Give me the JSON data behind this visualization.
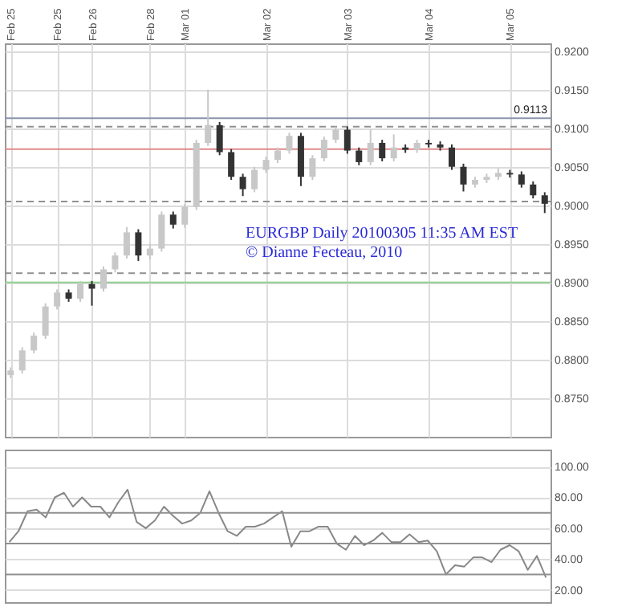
{
  "chart_data": [
    {
      "type": "candlestick",
      "grid": true,
      "annotations": [
        "EURGBP Daily 20100305 11:35 AM EST",
        "© Dianne Fecteau, 2010"
      ],
      "categories": [
        "Feb 25",
        null,
        null,
        null,
        "Feb 25",
        null,
        null,
        "Feb 26",
        null,
        null,
        null,
        null,
        "Feb 28",
        null,
        null,
        "Mar 01",
        null,
        null,
        null,
        null,
        null,
        null,
        "Mar 02",
        null,
        null,
        null,
        null,
        null,
        null,
        "Mar 03",
        null,
        null,
        null,
        null,
        null,
        null,
        "Mar 04",
        null,
        null,
        null,
        null,
        null,
        null,
        "Mar 05",
        null,
        null,
        null
      ],
      "ohlc": [
        [
          0.878,
          0.879,
          0.8776,
          0.8786
        ],
        [
          0.8786,
          0.8816,
          0.8782,
          0.8812
        ],
        [
          0.8812,
          0.8835,
          0.8808,
          0.8831
        ],
        [
          0.8831,
          0.8873,
          0.8827,
          0.8869
        ],
        [
          0.8869,
          0.8891,
          0.8865,
          0.8887
        ],
        [
          0.8887,
          0.8891,
          0.8875,
          0.8879
        ],
        [
          0.8879,
          0.8902,
          0.8875,
          0.8898
        ],
        [
          0.8898,
          0.8902,
          0.887,
          0.8892
        ],
        [
          0.8892,
          0.8921,
          0.8888,
          0.8917
        ],
        [
          0.8917,
          0.8939,
          0.8913,
          0.8935
        ],
        [
          0.8935,
          0.8972,
          0.8931,
          0.8965
        ],
        [
          0.8965,
          0.8969,
          0.8928,
          0.8935
        ],
        [
          0.8935,
          0.895,
          0.893,
          0.8944
        ],
        [
          0.8944,
          0.8992,
          0.894,
          0.8988
        ],
        [
          0.8988,
          0.8992,
          0.897,
          0.8975
        ],
        [
          0.8975,
          0.9002,
          0.8971,
          0.8998
        ],
        [
          0.8998,
          0.9085,
          0.8994,
          0.9081
        ],
        [
          0.9081,
          0.915,
          0.9077,
          0.9104
        ],
        [
          0.9104,
          0.9108,
          0.9065,
          0.9069
        ],
        [
          0.9069,
          0.9073,
          0.9033,
          0.9037
        ],
        [
          0.9037,
          0.9041,
          0.9012,
          0.9021
        ],
        [
          0.9021,
          0.905,
          0.9017,
          0.9046
        ],
        [
          0.9046,
          0.9063,
          0.9042,
          0.9059
        ],
        [
          0.9059,
          0.9075,
          0.9055,
          0.9071
        ],
        [
          0.9071,
          0.9094,
          0.9067,
          0.909
        ],
        [
          0.909,
          0.9094,
          0.9025,
          0.9037
        ],
        [
          0.9037,
          0.9065,
          0.9033,
          0.9061
        ],
        [
          0.9061,
          0.9089,
          0.9057,
          0.9085
        ],
        [
          0.9085,
          0.9102,
          0.9081,
          0.9098
        ],
        [
          0.9098,
          0.9102,
          0.9067,
          0.9071
        ],
        [
          0.9071,
          0.9075,
          0.9052,
          0.9056
        ],
        [
          0.9056,
          0.9098,
          0.9052,
          0.9081
        ],
        [
          0.9081,
          0.9085,
          0.9057,
          0.9061
        ],
        [
          0.9061,
          0.9092,
          0.9057,
          0.9075
        ],
        [
          0.9075,
          0.9079,
          0.9068,
          0.9072
        ],
        [
          0.9072,
          0.9085,
          0.9068,
          0.9081
        ],
        [
          0.9081,
          0.9085,
          0.9075,
          0.9079
        ],
        [
          0.9079,
          0.9083,
          0.9071,
          0.9075
        ],
        [
          0.9075,
          0.9079,
          0.9046,
          0.905
        ],
        [
          0.905,
          0.9054,
          0.9018,
          0.9027
        ],
        [
          0.9027,
          0.9037,
          0.9023,
          0.9033
        ],
        [
          0.9033,
          0.9041,
          0.9029,
          0.9037
        ],
        [
          0.9037,
          0.9048,
          0.9033,
          0.9042
        ],
        [
          0.9042,
          0.9046,
          0.9036,
          0.904
        ],
        [
          0.904,
          0.9044,
          0.9023,
          0.9027
        ],
        [
          0.9027,
          0.9031,
          0.9009,
          0.9013
        ],
        [
          0.9013,
          0.9017,
          0.899,
          0.9002
        ]
      ],
      "colors": [
        "#c8c8c8",
        "#c8c8c8",
        "#c8c8c8",
        "#c8c8c8",
        "#c8c8c8",
        "#333333",
        "#c8c8c8",
        "#333333",
        "#c8c8c8",
        "#c8c8c8",
        "#c8c8c8",
        "#333333",
        "#c8c8c8",
        "#c8c8c8",
        "#333333",
        "#c8c8c8",
        "#c8c8c8",
        "#c8c8c8",
        "#333333",
        "#333333",
        "#333333",
        "#c8c8c8",
        "#c8c8c8",
        "#c8c8c8",
        "#c8c8c8",
        "#333333",
        "#c8c8c8",
        "#c8c8c8",
        "#c8c8c8",
        "#333333",
        "#333333",
        "#c8c8c8",
        "#333333",
        "#c8c8c8",
        "#333333",
        "#c8c8c8",
        "#333333",
        "#333333",
        "#333333",
        "#333333",
        "#c8c8c8",
        "#c8c8c8",
        "#c8c8c8",
        "#333333",
        "#333333",
        "#333333",
        "#333333"
      ],
      "ylim": [
        0.87,
        0.921
      ],
      "yticks": [
        {
          "value": 0.875,
          "label": "0.8750"
        },
        {
          "value": 0.88,
          "label": "0.8800"
        },
        {
          "value": 0.885,
          "label": "0.8850"
        },
        {
          "value": 0.89,
          "label": "0.8900"
        },
        {
          "value": 0.895,
          "label": "0.8950"
        },
        {
          "value": 0.9,
          "label": "0.9000"
        },
        {
          "value": 0.905,
          "label": "0.9050"
        },
        {
          "value": 0.91,
          "label": "0.9100"
        },
        {
          "value": 0.915,
          "label": "0.9150"
        },
        {
          "value": 0.92,
          "label": "0.9200"
        }
      ],
      "ref_lines": [
        {
          "axis": "y",
          "value": 0.9113,
          "label": "0.9113",
          "color": "#8a94aa",
          "line_style": "solid"
        },
        {
          "axis": "y",
          "value": 0.9102,
          "color": "#909090",
          "line_style": "dashed"
        },
        {
          "axis": "y",
          "value": 0.9073,
          "color": "#e08a8a",
          "line_style": "solid"
        },
        {
          "axis": "y",
          "value": 0.9005,
          "color": "#909090",
          "line_style": "dashed"
        },
        {
          "axis": "y",
          "value": 0.8912,
          "color": "#909090",
          "line_style": "dashed"
        },
        {
          "axis": "y",
          "value": 0.89,
          "color": "#90d090",
          "line_style": "solid"
        }
      ]
    },
    {
      "type": "line",
      "grid": "y",
      "tick_labels": "y",
      "line_style": "solid",
      "categories": [
        null,
        null,
        null,
        null,
        null,
        null,
        null,
        null,
        null,
        null,
        null,
        null,
        null,
        null,
        null,
        null,
        null,
        null,
        null,
        null,
        null,
        null,
        null,
        null,
        null,
        null,
        null,
        null,
        null,
        null,
        null,
        null,
        null,
        null,
        null,
        null,
        null,
        null,
        null,
        null,
        null,
        null,
        null,
        null,
        null,
        null,
        null,
        null,
        null,
        null,
        null,
        null,
        null,
        null,
        null,
        null,
        null,
        null,
        null,
        null
      ],
      "series": [
        {
          "color": "#888888",
          "values": [
            51,
            58,
            71,
            72,
            67,
            80,
            83,
            74,
            80,
            74,
            74,
            67,
            77,
            85,
            64,
            60,
            65,
            74,
            68,
            63,
            65,
            70,
            84,
            70,
            58,
            55,
            61,
            61,
            63,
            67,
            71,
            48,
            58,
            58,
            61,
            61,
            50,
            46,
            55,
            49,
            52,
            57,
            51,
            51,
            56,
            51,
            52,
            45,
            30,
            36,
            35,
            41,
            41,
            38,
            46,
            49,
            45,
            33,
            42,
            28
          ]
        }
      ],
      "ylim": [
        12,
        111
      ],
      "yticks": [
        {
          "value": 20,
          "label": "20.00"
        },
        {
          "value": 40,
          "label": "40.00"
        },
        {
          "value": 60,
          "label": "60.00"
        },
        {
          "value": 80,
          "label": "80.00"
        },
        {
          "value": 100,
          "label": "100.00"
        }
      ],
      "ref_lines": [
        {
          "axis": "y",
          "value": 70,
          "color": "#909090",
          "line_style": "solid"
        },
        {
          "axis": "y",
          "value": 50,
          "color": "#909090",
          "line_style": "solid"
        },
        {
          "axis": "y",
          "value": 30,
          "color": "#909090",
          "line_style": "solid"
        }
      ]
    }
  ]
}
